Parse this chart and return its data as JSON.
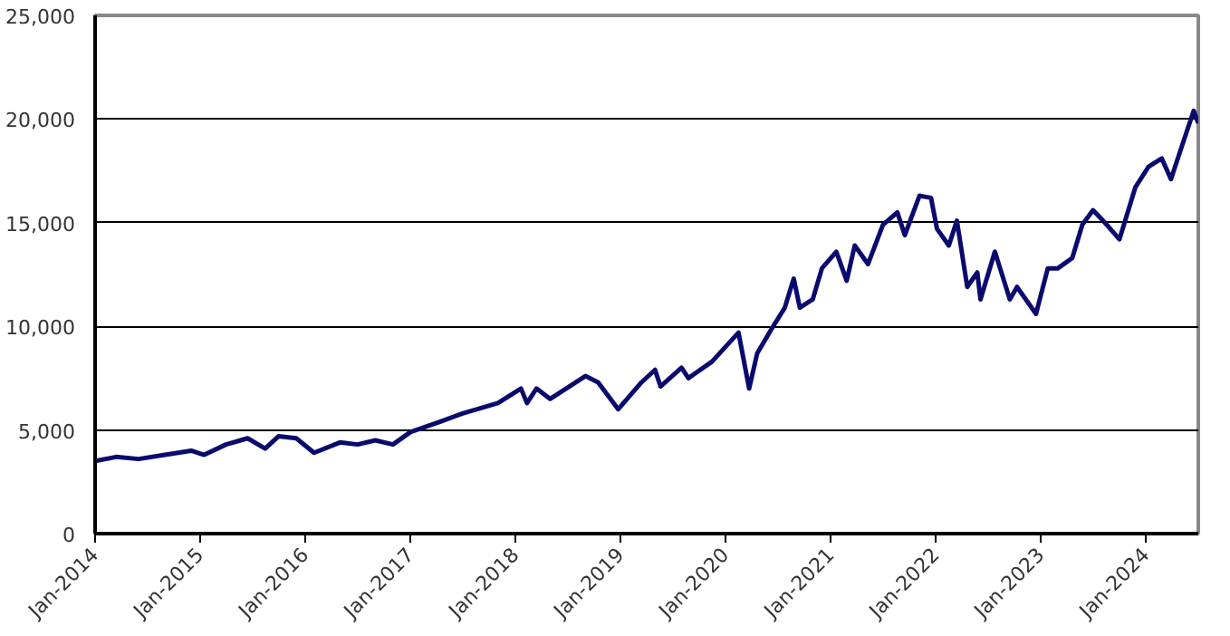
{
  "chart_data": {
    "type": "line",
    "grid": "y",
    "xlim": [
      "2014-01-01",
      "2024-07-01"
    ],
    "ylim": [
      0,
      25000
    ],
    "xticks": [
      {
        "value": "2014-01-01",
        "label": "Jan-2014"
      },
      {
        "value": "2015-01-01",
        "label": "Jan-2015"
      },
      {
        "value": "2016-01-01",
        "label": "Jan-2016"
      },
      {
        "value": "2017-01-01",
        "label": "Jan-2017"
      },
      {
        "value": "2018-01-01",
        "label": "Jan-2018"
      },
      {
        "value": "2019-01-01",
        "label": "Jan-2019"
      },
      {
        "value": "2020-01-01",
        "label": "Jan-2020"
      },
      {
        "value": "2021-01-01",
        "label": "Jan-2021"
      },
      {
        "value": "2022-01-01",
        "label": "Jan-2022"
      },
      {
        "value": "2023-01-01",
        "label": "Jan-2023"
      },
      {
        "value": "2024-01-01",
        "label": "Jan-2024"
      }
    ],
    "yticks": [
      0,
      {
        "value": 5000,
        "label": "5,000"
      },
      {
        "value": 10000,
        "label": "10,000"
      },
      {
        "value": 15000,
        "label": "15,000"
      },
      {
        "value": 20000,
        "label": "20,000"
      },
      {
        "value": 25000,
        "label": "25,000"
      }
    ],
    "series": [
      {
        "color": "#0a0a6e",
        "x": [
          "2014-01-01",
          "2014-03-15",
          "2014-06-01",
          "2014-09-01",
          "2014-12-01",
          "2015-01-15",
          "2015-04-01",
          "2015-06-15",
          "2015-08-15",
          "2015-10-01",
          "2015-12-01",
          "2016-02-01",
          "2016-05-01",
          "2016-07-01",
          "2016-09-01",
          "2016-11-01",
          "2017-01-01",
          "2017-04-15",
          "2017-07-01",
          "2017-11-01",
          "2018-01-20",
          "2018-02-10",
          "2018-03-15",
          "2018-05-01",
          "2018-09-01",
          "2018-10-15",
          "2018-12-24",
          "2019-03-15",
          "2019-05-01",
          "2019-05-20",
          "2019-08-01",
          "2019-08-25",
          "2019-11-15",
          "2020-02-15",
          "2020-03-23",
          "2020-04-20",
          "2020-06-10",
          "2020-07-25",
          "2020-08-25",
          "2020-09-15",
          "2020-10-30",
          "2020-12-01",
          "2021-01-20",
          "2021-02-25",
          "2021-03-25",
          "2021-05-10",
          "2021-07-01",
          "2021-08-20",
          "2021-09-15",
          "2021-11-05",
          "2021-12-15",
          "2022-01-05",
          "2022-02-15",
          "2022-03-15",
          "2022-04-20",
          "2022-05-25",
          "2022-06-05",
          "2022-07-25",
          "2022-09-15",
          "2022-10-10",
          "2022-12-15",
          "2023-01-25",
          "2023-03-01",
          "2023-04-20",
          "2023-05-25",
          "2023-07-01",
          "2023-08-05",
          "2023-10-01",
          "2023-11-25",
          "2024-01-10",
          "2024-02-25",
          "2024-03-28",
          "2024-05-10",
          "2024-06-15",
          "2024-07-01"
        ],
        "values": [
          3500,
          3700,
          3600,
          3800,
          4000,
          3800,
          4300,
          4600,
          4100,
          4700,
          4600,
          3900,
          4400,
          4300,
          4500,
          4300,
          4900,
          5400,
          5800,
          6300,
          7000,
          6300,
          7000,
          6500,
          7600,
          7300,
          6000,
          7300,
          7900,
          7100,
          8000,
          7500,
          8300,
          9700,
          7000,
          8700,
          9900,
          10900,
          12300,
          10900,
          11300,
          12800,
          13600,
          12200,
          13900,
          13000,
          14900,
          15500,
          14400,
          16300,
          16200,
          14700,
          13900,
          15100,
          11900,
          12600,
          11300,
          13600,
          11300,
          11900,
          10600,
          12800,
          12800,
          13300,
          14900,
          15600,
          15100,
          14200,
          16700,
          17700,
          18100,
          17100,
          18900,
          20400,
          19800
        ]
      }
    ]
  }
}
